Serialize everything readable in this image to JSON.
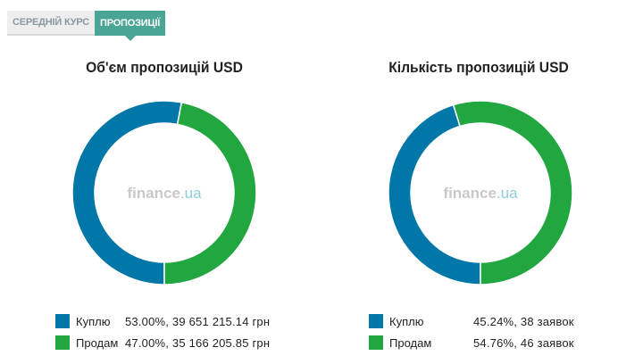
{
  "tabs": [
    {
      "label": "Середній курс",
      "active": false
    },
    {
      "label": "Пропозиції",
      "active": true
    }
  ],
  "colors": {
    "buy": "#0077a8",
    "sell": "#21a640",
    "tab_active": "#4aa597"
  },
  "watermark": {
    "brand": "finance",
    "suffix": ".ua"
  },
  "chart_data": [
    {
      "type": "pie",
      "title": "Об'єм пропозицій USD",
      "slices": [
        {
          "label": "Куплю",
          "value": 53.0,
          "display": "53.00%, 39 651 215.14 грн",
          "color": "#0077a8"
        },
        {
          "label": "Продам",
          "value": 47.0,
          "display": "47.00%, 35 166 205.85 грн",
          "color": "#21a640"
        }
      ],
      "legend_position": "bottom"
    },
    {
      "type": "pie",
      "title": "Кількість пропозицій USD",
      "slices": [
        {
          "label": "Куплю",
          "value": 45.24,
          "display": "45.24%, 38 заявок",
          "color": "#0077a8"
        },
        {
          "label": "Продам",
          "value": 54.76,
          "display": "54.76%, 46 заявок",
          "color": "#21a640"
        }
      ],
      "legend_position": "bottom"
    }
  ]
}
